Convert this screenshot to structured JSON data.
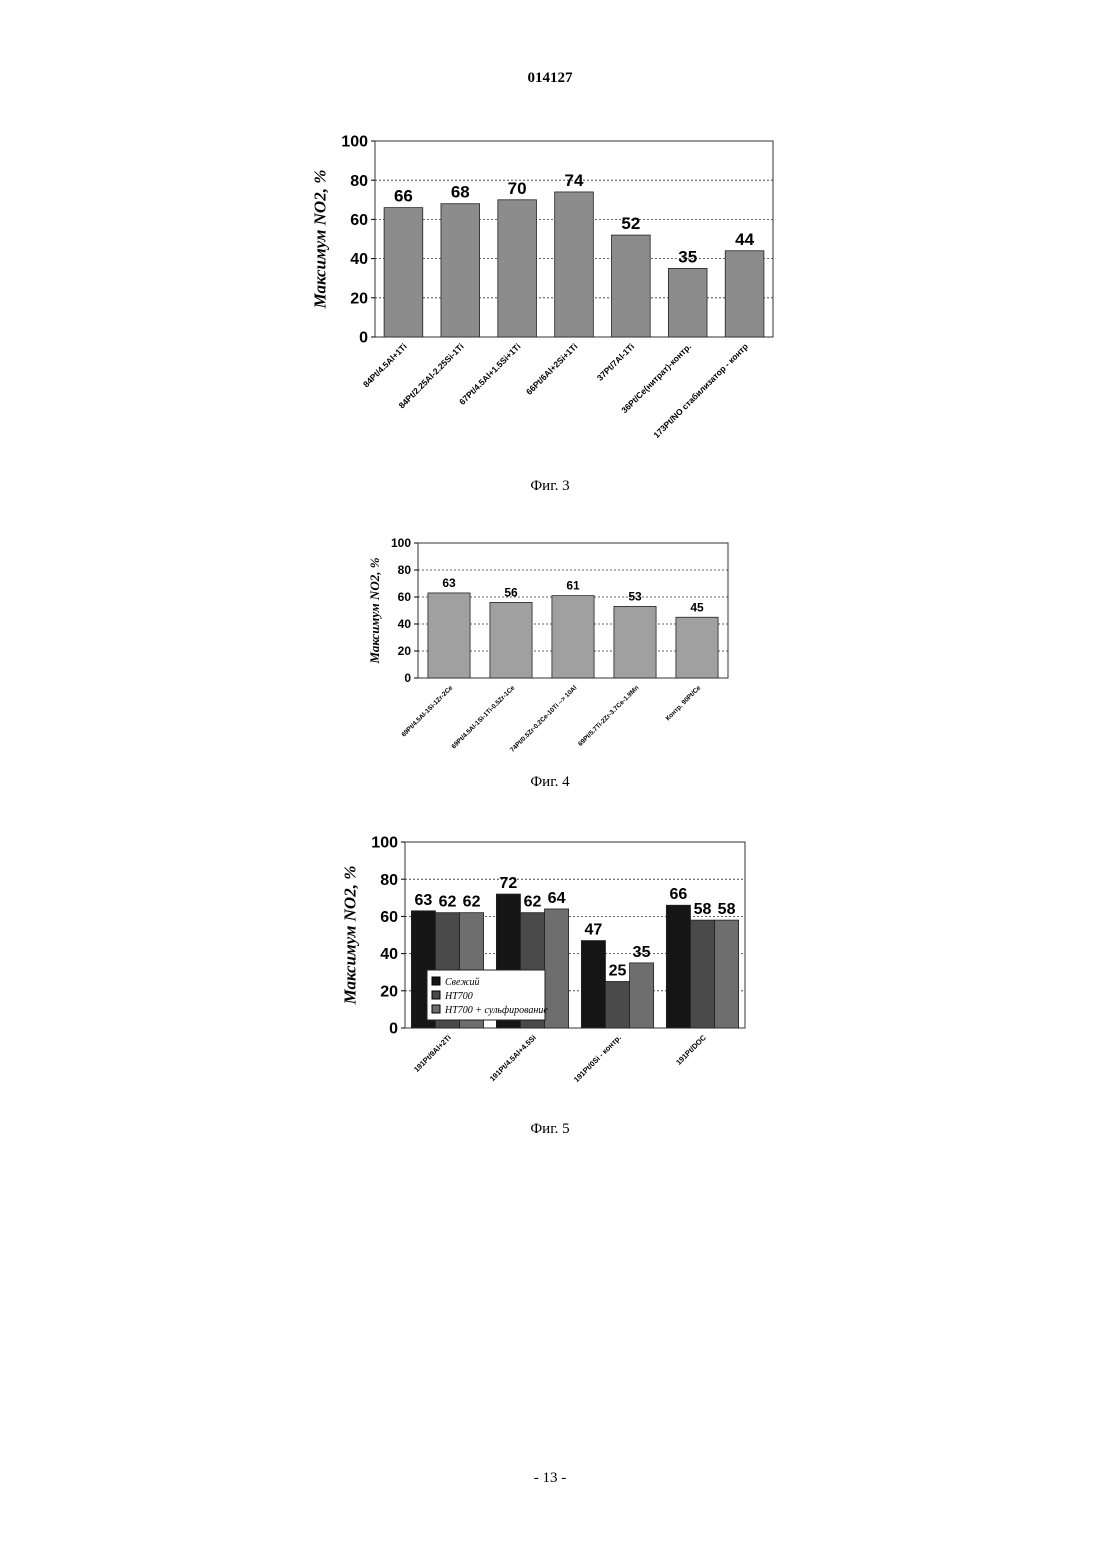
{
  "header": "014127",
  "page_number": "- 13 -",
  "chart_data": [
    {
      "type": "bar",
      "caption": "Фиг. 3",
      "y_label": "Максимум NO2, %",
      "categories": [
        "84Pt/4.5Al+1Ti",
        "84Pt/2.25Al-2.25Si-1Ti",
        "67Pt/4.5Al+1.5Si+1Ti",
        "66Pt/6Al+2Si+1Ti",
        "37Pt/7Al-1Ti",
        "36Pt/Ce(нитрат)-контр.",
        "173Pt/NO стабилизатор - контр"
      ],
      "values": [
        66,
        68,
        70,
        74,
        52,
        35,
        44
      ],
      "color": "#8c8c8c",
      "ylim": [
        0,
        100
      ],
      "yticks": [
        0,
        20,
        40,
        60,
        80,
        100
      ],
      "grid": true
    },
    {
      "type": "bar",
      "caption": "Фиг. 4",
      "y_label": "Максимум NO2, %",
      "categories": [
        "69Pt/4.5Al-1Si-1Zr-2Ce",
        "69Pt/4.5Al-1Si-1Ti-0.5Zr-1Ce",
        "74Pt/0.5Zr-0.2Ce-10Ti --> 10Al",
        "69Pt/5.7Ti-2Zr-3.7Ce-1.9Mn",
        "Контр. 90Pt/Ce"
      ],
      "values": [
        63,
        56,
        61,
        53,
        45
      ],
      "color": "#a0a0a0",
      "ylim": [
        0,
        100
      ],
      "yticks": [
        0,
        20,
        40,
        60,
        80,
        100
      ],
      "grid": true
    },
    {
      "type": "grouped-bar",
      "caption": "Фиг. 5",
      "y_label": "Максимум NO2, %",
      "categories": [
        "191Pt/9Al+2Ti",
        "191Pt/4.5Al+4.5Si",
        "191Pt/0Si - контр.",
        "191Pt/DOC"
      ],
      "series": [
        {
          "name": "Свежий",
          "color": "#151515",
          "values": [
            63,
            72,
            47,
            66
          ]
        },
        {
          "name": "HT700",
          "color": "#4a4a4a",
          "values": [
            62,
            62,
            25,
            58
          ]
        },
        {
          "name": "HT700 + сульфирование",
          "color": "#6e6e6e",
          "values": [
            62,
            64,
            35,
            58
          ]
        }
      ],
      "ylim": [
        0,
        100
      ],
      "yticks": [
        0,
        20,
        40,
        60,
        80,
        100
      ],
      "grid": true,
      "legend": "lower-left"
    }
  ]
}
